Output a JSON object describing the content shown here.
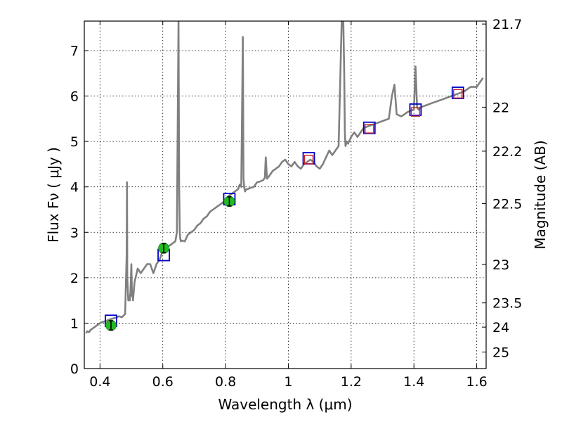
{
  "chart_data": {
    "type": "line",
    "xlabel": "Wavelength  λ (μm)",
    "ylabel": "Flux  Fν  ( μJy )",
    "y2label": "Magnitude (AB)",
    "xlim": [
      0.35,
      1.63
    ],
    "ylim": [
      0,
      7.65
    ],
    "grid": true,
    "x_ticks": [
      {
        "value": 0.4,
        "label": "0.4"
      },
      {
        "value": 0.6,
        "label": "0.6"
      },
      {
        "value": 0.8,
        "label": "0.8"
      },
      {
        "value": 1.0,
        "label": "1"
      },
      {
        "value": 1.2,
        "label": "1.2"
      },
      {
        "value": 1.4,
        "label": "1.4"
      },
      {
        "value": 1.6,
        "label": "1.6"
      }
    ],
    "y_ticks": [
      {
        "value": 0,
        "label": "0"
      },
      {
        "value": 1,
        "label": "1"
      },
      {
        "value": 2,
        "label": "2"
      },
      {
        "value": 3,
        "label": "3"
      },
      {
        "value": 4,
        "label": "4"
      },
      {
        "value": 5,
        "label": "5"
      },
      {
        "value": 6,
        "label": "6"
      },
      {
        "value": 7,
        "label": "7"
      }
    ],
    "y2_ticks": [
      {
        "value": 21.7,
        "label": "21.7"
      },
      {
        "value": 22,
        "label": "22"
      },
      {
        "value": 22.2,
        "label": "22.2"
      },
      {
        "value": 22.5,
        "label": "22.5"
      },
      {
        "value": 23,
        "label": "23"
      },
      {
        "value": 23.5,
        "label": "23.5"
      },
      {
        "value": 24,
        "label": "24"
      },
      {
        "value": 25,
        "label": "25"
      }
    ],
    "colors": {
      "spectrum": "#808080",
      "photometry_observed": "#22bb22",
      "model_photometry": "#0000cc",
      "model_spectrum_box": "#cc2222"
    },
    "series": [
      {
        "type": "line",
        "x": [
          0.355,
          0.36,
          0.365,
          0.37,
          0.38,
          0.39,
          0.4,
          0.41,
          0.42,
          0.43,
          0.44,
          0.45,
          0.46,
          0.47,
          0.48,
          0.485,
          0.486,
          0.487,
          0.49,
          0.493,
          0.495,
          0.497,
          0.5,
          0.502,
          0.503,
          0.505,
          0.51,
          0.52,
          0.53,
          0.54,
          0.55,
          0.56,
          0.57,
          0.58,
          0.59,
          0.6,
          0.61,
          0.62,
          0.63,
          0.64,
          0.645,
          0.65,
          0.652,
          0.654,
          0.656,
          0.658,
          0.66,
          0.67,
          0.68,
          0.69,
          0.7,
          0.71,
          0.72,
          0.73,
          0.74,
          0.75,
          0.76,
          0.77,
          0.78,
          0.79,
          0.8,
          0.81,
          0.82,
          0.83,
          0.84,
          0.845,
          0.85,
          0.855,
          0.857,
          0.859,
          0.862,
          0.866,
          0.87,
          0.88,
          0.89,
          0.9,
          0.91,
          0.92,
          0.925,
          0.928,
          0.932,
          0.94,
          0.95,
          0.96,
          0.97,
          0.98,
          0.99,
          1.0,
          1.01,
          1.02,
          1.03,
          1.04,
          1.05,
          1.06,
          1.07,
          1.08,
          1.09,
          1.1,
          1.11,
          1.12,
          1.13,
          1.14,
          1.15,
          1.16,
          1.17,
          1.175,
          1.178,
          1.18,
          1.182,
          1.186,
          1.19,
          1.2,
          1.21,
          1.22,
          1.24,
          1.26,
          1.28,
          1.3,
          1.32,
          1.33,
          1.338,
          1.345,
          1.36,
          1.38,
          1.4,
          1.405,
          1.41,
          1.415,
          1.42,
          1.44,
          1.46,
          1.48,
          1.5,
          1.52,
          1.54,
          1.56,
          1.58,
          1.6,
          1.62
        ],
        "values": [
          0.78,
          0.82,
          0.8,
          0.85,
          0.9,
          0.95,
          1.0,
          1.03,
          1.05,
          1.08,
          1.1,
          1.12,
          1.15,
          1.13,
          1.2,
          2.5,
          4.1,
          2.0,
          1.5,
          1.6,
          1.5,
          1.7,
          2.3,
          1.6,
          1.7,
          1.5,
          1.9,
          2.2,
          2.1,
          2.2,
          2.3,
          2.3,
          2.1,
          2.3,
          2.4,
          2.6,
          2.7,
          2.7,
          2.75,
          2.8,
          3.0,
          7.65,
          4.0,
          3.0,
          2.85,
          2.8,
          2.82,
          2.8,
          2.95,
          3.0,
          3.05,
          3.15,
          3.2,
          3.3,
          3.35,
          3.45,
          3.5,
          3.55,
          3.6,
          3.65,
          3.7,
          3.8,
          3.85,
          3.9,
          3.95,
          4.05,
          4.0,
          7.3,
          4.2,
          4.0,
          3.9,
          3.95,
          3.95,
          3.98,
          4.0,
          4.1,
          4.12,
          4.15,
          4.2,
          4.65,
          4.18,
          4.25,
          4.35,
          4.4,
          4.45,
          4.55,
          4.6,
          4.5,
          4.45,
          4.55,
          4.45,
          4.4,
          4.5,
          4.55,
          4.6,
          4.55,
          4.45,
          4.4,
          4.5,
          4.65,
          4.8,
          4.7,
          4.8,
          4.9,
          7.65,
          7.65,
          6.5,
          5.2,
          4.9,
          5.0,
          4.95,
          5.1,
          5.2,
          5.1,
          5.3,
          5.35,
          5.4,
          5.45,
          5.5,
          6.0,
          6.25,
          5.6,
          5.55,
          5.65,
          5.7,
          6.65,
          5.75,
          5.7,
          5.75,
          5.8,
          5.85,
          5.9,
          5.95,
          6.0,
          6.05,
          6.1,
          6.2,
          6.2,
          6.4
        ]
      },
      {
        "type": "errorbar",
        "name": "",
        "x": [
          0.435,
          0.603,
          0.812
        ],
        "values": [
          0.95,
          2.65,
          3.68
        ],
        "yerr": [
          0.1,
          0.1,
          0.1
        ]
      },
      {
        "type": "square_marker",
        "color": "#0000cc",
        "x": [
          0.435,
          0.603,
          0.812,
          1.065,
          1.258,
          1.405,
          1.54
        ],
        "values": [
          1.05,
          2.5,
          3.73,
          4.63,
          5.3,
          5.7,
          6.07
        ]
      },
      {
        "type": "square_marker",
        "color": "#cc2222",
        "x": [
          1.065,
          1.258,
          1.405,
          1.54
        ],
        "values": [
          4.6,
          5.28,
          5.65,
          6.05
        ]
      }
    ]
  }
}
